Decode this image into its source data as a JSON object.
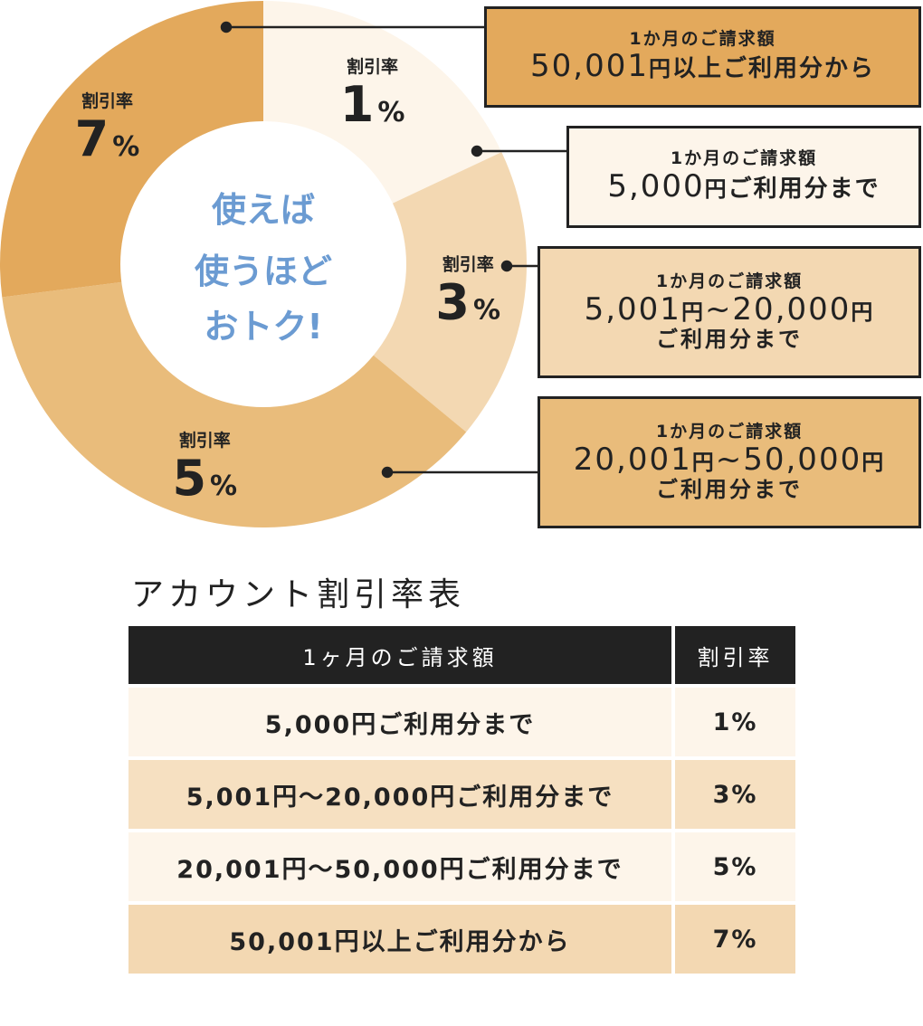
{
  "chart_data": {
    "type": "pie",
    "center_text": [
      "使えば",
      "使うほど",
      "おトク!"
    ],
    "slice_label": "割引率",
    "slices": [
      {
        "rate": "1",
        "value": 18,
        "color": "#fdf5ea"
      },
      {
        "rate": "3",
        "value": 18,
        "color": "#f3d8b2"
      },
      {
        "rate": "5",
        "value": 37,
        "color": "#e9bc7b"
      },
      {
        "rate": "7",
        "value": 27,
        "color": "#e3a95c"
      }
    ],
    "percent_sign": "%"
  },
  "callouts": [
    {
      "label": "1か月のご請求額",
      "amount": "50,001",
      "yen": "円",
      "suffix": "以上ご利用分から",
      "sub": "",
      "color": "#e3a95c"
    },
    {
      "label": "1か月のご請求額",
      "amount": "5,000",
      "yen": "円",
      "suffix": "ご利用分まで",
      "sub": "",
      "color": "#fdf5ea"
    },
    {
      "label": "1か月のご請求額",
      "amount": "5,001",
      "yen": "円",
      "amount2": "~20,000",
      "yen2": "円",
      "sub": "ご利用分まで",
      "color": "#f3d8b2"
    },
    {
      "label": "1か月のご請求額",
      "amount": "20,001",
      "yen": "円",
      "amount2": "~50,000",
      "yen2": "円",
      "sub": "ご利用分まで",
      "color": "#e9bc7b"
    }
  ],
  "table": {
    "title": "アカウント割引率表",
    "headers": [
      "1ヶ月のご請求額",
      "割引率"
    ],
    "rows": [
      {
        "range": "5,000円ご利用分まで",
        "rate": "1%",
        "bg": "#fdf5ea"
      },
      {
        "range": "5,001円～20,000円ご利用分まで",
        "rate": "3%",
        "bg": "#f6e0c1"
      },
      {
        "range": "20,001円～50,000円ご利用分まで",
        "rate": "5%",
        "bg": "#fdf5ea"
      },
      {
        "range": "50,001円以上ご利用分から",
        "rate": "7%",
        "bg": "#f3d8b2"
      }
    ]
  }
}
